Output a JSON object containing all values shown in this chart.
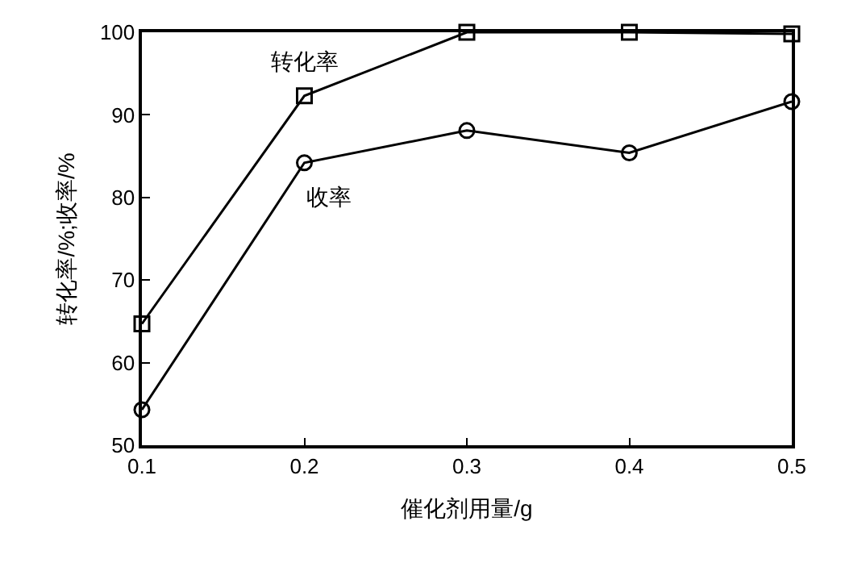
{
  "chart_data": {
    "type": "line",
    "xlabel": "催化剂用量/g",
    "ylabel": "转化率/%;收率/%",
    "x": [
      0.1,
      0.2,
      0.3,
      0.4,
      0.5
    ],
    "series": [
      {
        "name": "转化率",
        "color": "#000000",
        "marker": "square",
        "values": [
          64.7,
          92.3,
          100,
          100,
          99.8
        ]
      },
      {
        "name": "收率",
        "color": "#000000",
        "marker": "circle",
        "values": [
          54.3,
          84.2,
          88.1,
          85.4,
          91.6
        ]
      }
    ],
    "xlim": [
      0.1,
      0.5
    ],
    "xticks": [
      {
        "value": 0.1,
        "label": "0.1"
      },
      {
        "value": 0.2,
        "label": "0.2"
      },
      {
        "value": 0.3,
        "label": "0.3"
      },
      {
        "value": 0.4,
        "label": "0.4"
      },
      {
        "value": 0.5,
        "label": "0.5"
      }
    ],
    "ylim": [
      50,
      100
    ],
    "yticks": [
      50,
      60,
      70,
      80,
      90,
      100
    ],
    "grid": false,
    "legend": false,
    "line_style": "solid"
  }
}
